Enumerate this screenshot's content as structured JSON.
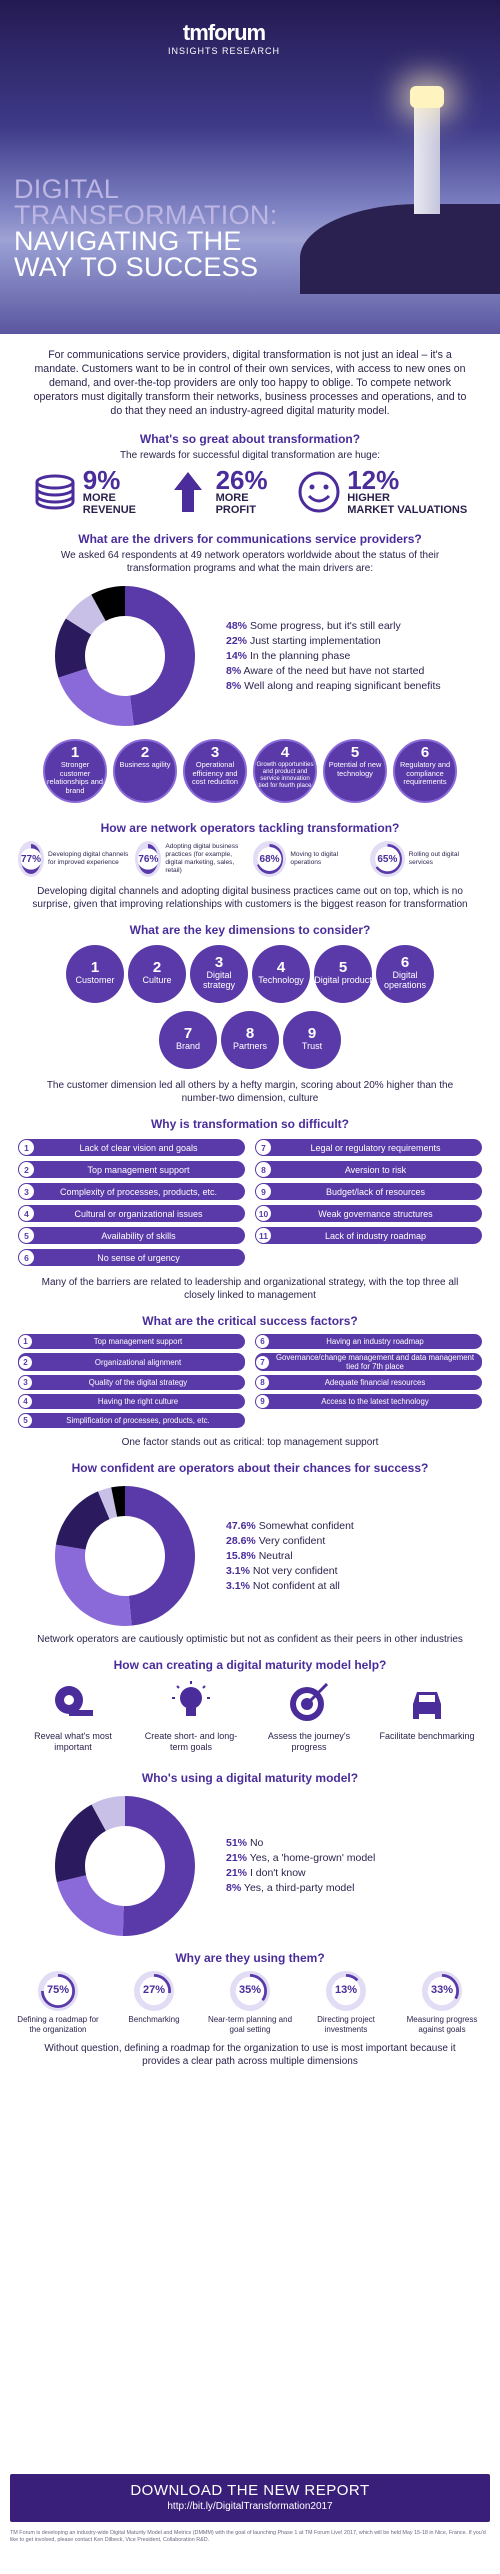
{
  "header": {
    "logo": "tmforum",
    "logo_sub": "INSIGHTS RESEARCH",
    "title_lines": [
      "DIGITAL",
      "TRANSFORMATION:",
      "NAVIGATING THE",
      "WAY TO SUCCESS"
    ]
  },
  "intro": "For communications service providers, digital transformation is not just an ideal – it's a mandate. Customers want to be in control of their own services, with access to new ones on demand, and over-the-top providers are only too happy to oblige. To compete network operators must digitally transform their networks, business processes and operations, and to do that they need an industry-agreed digital maturity model.",
  "great": {
    "heading": "What's so great about transformation?",
    "sub": "The rewards for successful digital transformation are huge:",
    "stats": [
      {
        "pct": "9%",
        "label1": "MORE",
        "label2": "REVENUE",
        "icon": "coins-icon"
      },
      {
        "pct": "26%",
        "label1": "MORE",
        "label2": "PROFIT",
        "icon": "up-arrow-icon"
      },
      {
        "pct": "12%",
        "label1": "HIGHER",
        "label2": "MARKET VALUATIONS",
        "icon": "smile-icon"
      }
    ]
  },
  "drivers": {
    "heading": "What are the drivers for communications service providers?",
    "sub": "We asked 64 respondents at 49 network operators worldwide about the status of their transformation programs and what the main drivers are:",
    "donut": [
      {
        "pct": "48%",
        "label": "Some progress, but it's still early",
        "value": 48,
        "color": "#5a3aa8"
      },
      {
        "pct": "22%",
        "label": "Just starting implementation",
        "value": 22,
        "color": "#8a6ad8"
      },
      {
        "pct": "14%",
        "label": "In the planning phase",
        "value": 14,
        "color": "#2b1a5e"
      },
      {
        "pct": "8%",
        "label": "Aware of the need but have not started",
        "value": 8,
        "color": "#c8c0e6"
      },
      {
        "pct": "8%",
        "label": "Well along and reaping significant benefits",
        "value": 8,
        "color": "#000000"
      }
    ],
    "circles": [
      {
        "n": "1",
        "t": "Stronger customer relationships and brand"
      },
      {
        "n": "2",
        "t": "Business agility"
      },
      {
        "n": "3",
        "t": "Operational efficiency and cost reduction"
      },
      {
        "n": "4",
        "t": "Growth opportunities and product and service innovation tied for fourth place"
      },
      {
        "n": "5",
        "t": "Potential of new technology"
      },
      {
        "n": "6",
        "t": "Regulatory and compliance requirements"
      }
    ]
  },
  "tackling": {
    "heading": "How are network operators tackling transformation?",
    "items": [
      {
        "pct": "77%",
        "value": 77,
        "t": "Developing digital channels for improved experience"
      },
      {
        "pct": "76%",
        "value": 76,
        "t": "Adopting digital business practices (for example, digital marketing, sales, retail)"
      },
      {
        "pct": "68%",
        "value": 68,
        "t": "Moving to digital operations"
      },
      {
        "pct": "65%",
        "value": 65,
        "t": "Rolling out digital services"
      }
    ],
    "note": "Developing digital channels and adopting digital business practices came out on top, which is no surprise, given that improving relationships with customers is the biggest reason for transformation"
  },
  "dimensions": {
    "heading": "What are the key dimensions to consider?",
    "items": [
      {
        "n": "1",
        "t": "Customer"
      },
      {
        "n": "2",
        "t": "Culture"
      },
      {
        "n": "3",
        "t": "Digital strategy"
      },
      {
        "n": "4",
        "t": "Technology"
      },
      {
        "n": "5",
        "t": "Digital product"
      },
      {
        "n": "6",
        "t": "Digital operations"
      },
      {
        "n": "7",
        "t": "Brand"
      },
      {
        "n": "8",
        "t": "Partners"
      },
      {
        "n": "9",
        "t": "Trust"
      }
    ],
    "note": "The customer dimension led all others by a hefty margin, scoring about 20% higher than the number-two dimension, culture"
  },
  "difficult": {
    "heading": "Why is transformation so difficult?",
    "left": [
      {
        "n": "1",
        "t": "Lack of clear vision and goals"
      },
      {
        "n": "2",
        "t": "Top management support"
      },
      {
        "n": "3",
        "t": "Complexity of processes, products, etc."
      },
      {
        "n": "4",
        "t": "Cultural or organizational issues"
      },
      {
        "n": "5",
        "t": "Availability of skills"
      },
      {
        "n": "6",
        "t": "No sense of urgency"
      }
    ],
    "right": [
      {
        "n": "7",
        "t": "Legal or regulatory requirements"
      },
      {
        "n": "8",
        "t": "Aversion to risk"
      },
      {
        "n": "9",
        "t": "Budget/lack of resources"
      },
      {
        "n": "10",
        "t": "Weak governance structures"
      },
      {
        "n": "11",
        "t": "Lack of industry roadmap"
      }
    ],
    "note": "Many of the barriers are related to leadership and organizational strategy, with the top three all closely linked to management"
  },
  "critical": {
    "heading": "What are the critical success factors?",
    "left": [
      {
        "n": "1",
        "t": "Top management support"
      },
      {
        "n": "2",
        "t": "Organizational alignment"
      },
      {
        "n": "3",
        "t": "Quality of the digital strategy"
      },
      {
        "n": "4",
        "t": "Having the right culture"
      },
      {
        "n": "5",
        "t": "Simplification of processes, products, etc."
      }
    ],
    "right": [
      {
        "n": "6",
        "t": "Having an industry roadmap"
      },
      {
        "n": "7",
        "t": "Governance/change management and data management tied for 7th place"
      },
      {
        "n": "8",
        "t": "Adequate financial resources"
      },
      {
        "n": "9",
        "t": "Access to the latest technology"
      }
    ],
    "note": "One factor stands out as critical: top management support"
  },
  "confident": {
    "heading": "How confident are operators about their chances for success?",
    "donut": [
      {
        "pct": "47.6%",
        "label": "Somewhat confident",
        "value": 47.6,
        "color": "#5a3aa8"
      },
      {
        "pct": "28.6%",
        "label": "Very confident",
        "value": 28.6,
        "color": "#8a6ad8"
      },
      {
        "pct": "15.8%",
        "label": "Neutral",
        "value": 15.8,
        "color": "#2b1a5e"
      },
      {
        "pct": "3.1%",
        "label": "Not very confident",
        "value": 3.1,
        "color": "#c8c0e6"
      },
      {
        "pct": "3.1%",
        "label": "Not confident at all",
        "value": 3.1,
        "color": "#000000"
      }
    ],
    "note": "Network operators are cautiously optimistic but not as confident as their peers in other industries"
  },
  "help": {
    "heading": "How can creating a digital maturity model help?",
    "items": [
      {
        "t": "Reveal what's most important",
        "icon": "tape-measure-icon"
      },
      {
        "t": "Create short- and long-term goals",
        "icon": "lightbulb-icon"
      },
      {
        "t": "Assess the journey's progress",
        "icon": "target-icon"
      },
      {
        "t": "Facilitate benchmarking",
        "icon": "car-icon"
      }
    ]
  },
  "using": {
    "heading": "Who's using a digital maturity model?",
    "donut": [
      {
        "pct": "51%",
        "label": "No",
        "value": 51,
        "color": "#5a3aa8"
      },
      {
        "pct": "21%",
        "label": "Yes, a 'home-grown' model",
        "value": 21,
        "color": "#8a6ad8"
      },
      {
        "pct": "21%",
        "label": "I don't know",
        "value": 21,
        "color": "#2b1a5e"
      },
      {
        "pct": "8%",
        "label": "Yes, a third-party model",
        "value": 8,
        "color": "#c8c0e6"
      }
    ]
  },
  "why": {
    "heading": "Why are they using them?",
    "items": [
      {
        "pct": "75%",
        "value": 75,
        "t": "Defining a roadmap for the organization"
      },
      {
        "pct": "27%",
        "value": 27,
        "t": "Benchmarking"
      },
      {
        "pct": "35%",
        "value": 35,
        "t": "Near-term planning and goal setting"
      },
      {
        "pct": "13%",
        "value": 13,
        "t": "Directing project investments"
      },
      {
        "pct": "33%",
        "value": 33,
        "t": "Measuring progress against goals"
      }
    ],
    "note": "Without question, defining a roadmap for the organization to use is most important because it provides a clear path across multiple dimensions"
  },
  "cta": {
    "title": "DOWNLOAD THE NEW REPORT",
    "url": "http://bit.ly/DigitalTransformation2017"
  },
  "footer": "TM Forum is developing an industry-wide Digital Maturity Model and Metrics (DMMM) with the goal of launching Phase 1 at TM Forum Live! 2017, which will be held May 15-18 in Nice, France. If you'd like to get involved, please contact Ken Dilbeck, Vice President, Collaboration R&D."
}
